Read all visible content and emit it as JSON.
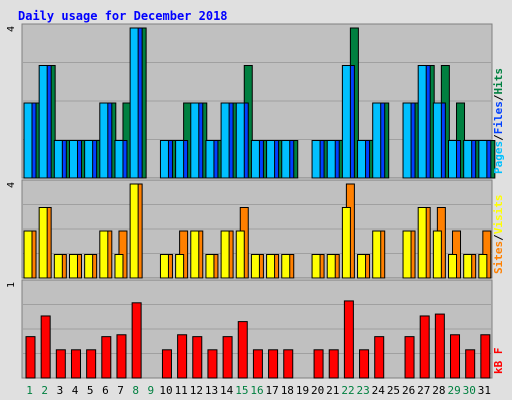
{
  "title": "Daily usage for December 2018",
  "panels": {
    "top": {
      "max_label": "4",
      "legend": [
        {
          "text": "Pages",
          "color": "#00c0ff"
        },
        {
          "text": "/",
          "color": "#000000"
        },
        {
          "text": "Files",
          "color": "#0040ff"
        },
        {
          "text": "/",
          "color": "#000000"
        },
        {
          "text": "Hits",
          "color": "#008040"
        }
      ]
    },
    "middle": {
      "max_label": "4",
      "legend": [
        {
          "text": "Sites",
          "color": "#ff8000"
        },
        {
          "text": "/",
          "color": "#000000"
        },
        {
          "text": "Visits",
          "color": "#ffff00"
        }
      ]
    },
    "bottom": {
      "max_label": "1",
      "legend": [
        {
          "text": "kB F",
          "color": "#ff0000"
        }
      ]
    }
  },
  "colors": {
    "background": "#c0c0c0",
    "frame": "#e0e0e0",
    "hits": "#008040",
    "files": "#0040ff",
    "pages": "#00c0ff",
    "visits": "#ffff00",
    "sites": "#ff8000",
    "kbytes": "#ff0000",
    "title": "#0000ff",
    "weekday_label": "#000000",
    "weekend_label": "#008040"
  },
  "chart_data": {
    "type": "bar",
    "title": "Daily usage for December 2018",
    "days": [
      "1",
      "2",
      "3",
      "4",
      "5",
      "6",
      "7",
      "8",
      "9",
      "10",
      "11",
      "12",
      "13",
      "14",
      "15",
      "16",
      "17",
      "18",
      "19",
      "20",
      "21",
      "22",
      "23",
      "24",
      "25",
      "26",
      "27",
      "28",
      "29",
      "30",
      "31"
    ],
    "weekend_days": [
      "1",
      "2",
      "8",
      "9",
      "15",
      "16",
      "22",
      "23",
      "29",
      "30"
    ],
    "top": {
      "ylim": [
        0,
        4
      ],
      "series": [
        {
          "name": "Hits",
          "values": [
            2,
            3,
            1,
            1,
            1,
            2,
            2,
            4,
            0,
            1,
            2,
            2,
            1,
            2,
            3,
            1,
            1,
            1,
            0,
            1,
            1,
            4,
            1,
            2,
            0,
            2,
            3,
            3,
            2,
            1,
            1
          ]
        },
        {
          "name": "Files",
          "values": [
            2,
            3,
            1,
            1,
            1,
            2,
            1,
            4,
            0,
            1,
            1,
            2,
            1,
            2,
            2,
            1,
            1,
            1,
            0,
            1,
            1,
            3,
            1,
            2,
            0,
            2,
            3,
            2,
            1,
            1,
            1
          ]
        },
        {
          "name": "Pages",
          "values": [
            2,
            3,
            1,
            1,
            1,
            2,
            1,
            4,
            0,
            1,
            1,
            2,
            1,
            2,
            2,
            1,
            1,
            1,
            0,
            1,
            1,
            3,
            1,
            2,
            0,
            2,
            3,
            2,
            1,
            1,
            1
          ]
        }
      ]
    },
    "middle": {
      "ylim": [
        0,
        4
      ],
      "series": [
        {
          "name": "Sites",
          "values": [
            2,
            3,
            1,
            1,
            1,
            2,
            2,
            4,
            0,
            1,
            2,
            2,
            1,
            2,
            3,
            1,
            1,
            1,
            0,
            1,
            1,
            4,
            1,
            2,
            0,
            2,
            3,
            3,
            2,
            1,
            2
          ]
        },
        {
          "name": "Visits",
          "values": [
            2,
            3,
            1,
            1,
            1,
            2,
            1,
            4,
            0,
            1,
            1,
            2,
            1,
            2,
            2,
            1,
            1,
            1,
            0,
            1,
            1,
            3,
            1,
            2,
            0,
            2,
            3,
            2,
            1,
            1,
            1
          ]
        }
      ]
    },
    "bottom": {
      "ylim": [
        0,
        1
      ],
      "series": [
        {
          "name": "kB F",
          "values": [
            0.44,
            0.66,
            0.3,
            0.3,
            0.3,
            0.44,
            0.46,
            0.8,
            0,
            0.3,
            0.46,
            0.44,
            0.3,
            0.44,
            0.6,
            0.3,
            0.3,
            0.3,
            0,
            0.3,
            0.3,
            0.82,
            0.3,
            0.44,
            0,
            0.44,
            0.66,
            0.68,
            0.46,
            0.3,
            0.46
          ]
        }
      ]
    }
  }
}
